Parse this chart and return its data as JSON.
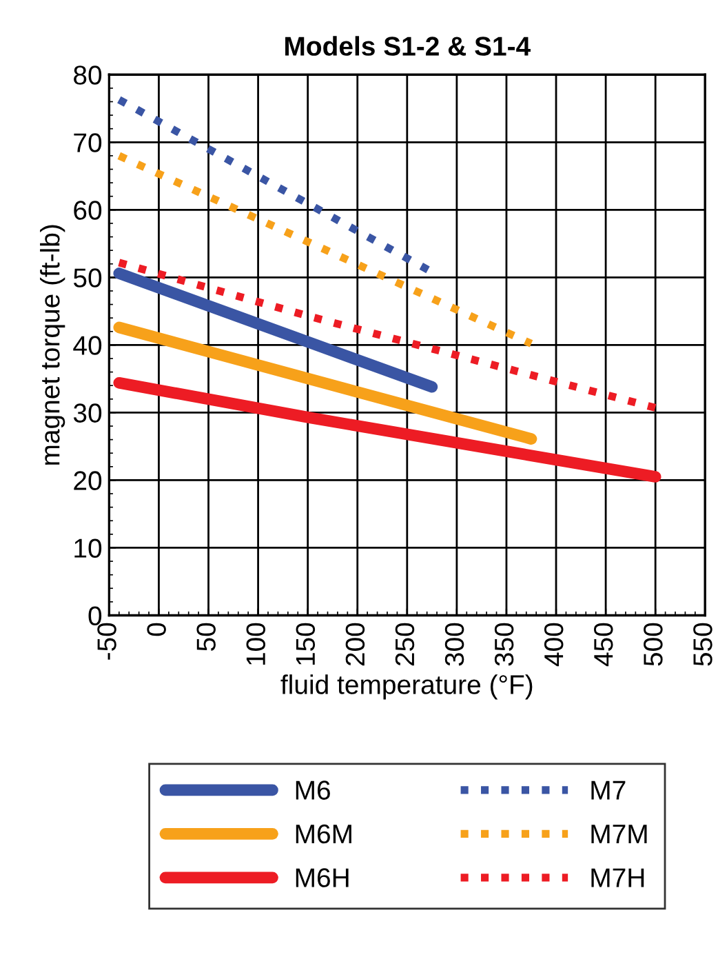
{
  "chart_data": {
    "type": "line",
    "title": "Models S1-2 & S1-4",
    "xlabel": "fluid temperature (°F)",
    "ylabel": "magnet torque (ft-lb)",
    "xlim": [
      -50,
      550
    ],
    "xticks": [
      -50,
      0,
      50,
      100,
      150,
      200,
      250,
      300,
      350,
      400,
      450,
      500,
      550
    ],
    "ylim": [
      0,
      80
    ],
    "yticks": [
      0,
      10,
      20,
      30,
      40,
      50,
      60,
      70,
      80
    ],
    "grid": true,
    "legend": "bottom",
    "marker": "none",
    "series": [
      {
        "name": "M6",
        "color": "#3a55a4",
        "line_style": "solid",
        "x": [
          -40,
          275
        ],
        "values": [
          50.6,
          33.8
        ]
      },
      {
        "name": "M7",
        "color": "#3a55a4",
        "line_style": "dotted",
        "x": [
          -40,
          275
        ],
        "values": [
          76.3,
          50.8
        ]
      },
      {
        "name": "M6M",
        "color": "#f7a11a",
        "line_style": "solid",
        "x": [
          -40,
          375
        ],
        "values": [
          42.6,
          26.1
        ]
      },
      {
        "name": "M7M",
        "color": "#f7a11a",
        "line_style": "dotted",
        "x": [
          -40,
          375
        ],
        "values": [
          68,
          40.2
        ]
      },
      {
        "name": "M6H",
        "color": "#ed1c24",
        "line_style": "solid",
        "x": [
          -40,
          150,
          500
        ],
        "values": [
          34.4,
          29.3,
          20.5
        ]
      },
      {
        "name": "M7H",
        "color": "#ed1c24",
        "line_style": "dotted",
        "x": [
          -40,
          150,
          500
        ],
        "values": [
          52.2,
          44.3,
          30.7
        ]
      }
    ]
  }
}
